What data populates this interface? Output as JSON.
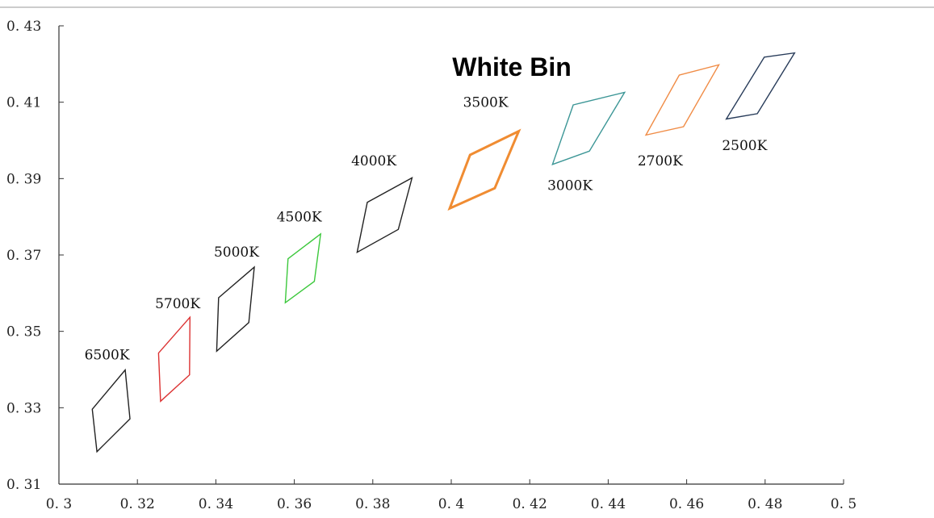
{
  "chart_data": {
    "type": "scatter",
    "title": "White Bin",
    "xlim": [
      0.3,
      0.5
    ],
    "ylim": [
      0.31,
      0.43
    ],
    "x_ticks": [
      "0. 3",
      "0. 32",
      "0. 34",
      "0. 36",
      "0. 38",
      "0. 4",
      "0. 42",
      "0. 44",
      "0. 46",
      "0. 48",
      "0. 5"
    ],
    "y_ticks": [
      "0. 43",
      "0. 41",
      "0. 39",
      "0. 37",
      "0. 35",
      "0. 33",
      "0. 31"
    ],
    "grid": false,
    "series": [
      {
        "name": "6500K",
        "color": "#222222",
        "bold": false,
        "points": [
          [
            0.3085,
            0.3296
          ],
          [
            0.3169,
            0.3399
          ],
          [
            0.3181,
            0.3271
          ],
          [
            0.3097,
            0.3185
          ]
        ]
      },
      {
        "name": "5700K",
        "color": "#dc3232",
        "bold": false,
        "points": [
          [
            0.3254,
            0.3443
          ],
          [
            0.3334,
            0.3537
          ],
          [
            0.3333,
            0.3386
          ],
          [
            0.3259,
            0.3317
          ]
        ]
      },
      {
        "name": "5000K",
        "color": "#222222",
        "bold": false,
        "points": [
          [
            0.3407,
            0.3588
          ],
          [
            0.3498,
            0.3668
          ],
          [
            0.3484,
            0.3523
          ],
          [
            0.3402,
            0.3448
          ]
        ]
      },
      {
        "name": "4500K",
        "color": "#3cc83c",
        "bold": false,
        "points": [
          [
            0.3584,
            0.369
          ],
          [
            0.3667,
            0.3755
          ],
          [
            0.3651,
            0.3631
          ],
          [
            0.3577,
            0.3575
          ]
        ]
      },
      {
        "name": "4000K",
        "color": "#222222",
        "bold": false,
        "points": [
          [
            0.3786,
            0.3838
          ],
          [
            0.39,
            0.3902
          ],
          [
            0.3865,
            0.3767
          ],
          [
            0.376,
            0.3707
          ]
        ]
      },
      {
        "name": "3500K",
        "color": "#f08c32",
        "bold": true,
        "points": [
          [
            0.4048,
            0.3962
          ],
          [
            0.4172,
            0.4024
          ],
          [
            0.4111,
            0.3875
          ],
          [
            0.3996,
            0.3822
          ]
        ]
      },
      {
        "name": "3000K",
        "color": "#3c9696",
        "bold": false,
        "points": [
          [
            0.4311,
            0.4093
          ],
          [
            0.4442,
            0.4126
          ],
          [
            0.4352,
            0.3972
          ],
          [
            0.4258,
            0.3937
          ]
        ]
      },
      {
        "name": "2700K",
        "color": "#f08c46",
        "bold": false,
        "points": [
          [
            0.4581,
            0.4171
          ],
          [
            0.4682,
            0.4198
          ],
          [
            0.4592,
            0.4036
          ],
          [
            0.4496,
            0.4014
          ]
        ]
      },
      {
        "name": "2500K",
        "color": "#283c5a",
        "bold": false,
        "points": [
          [
            0.4798,
            0.4218
          ],
          [
            0.4875,
            0.4229
          ],
          [
            0.478,
            0.407
          ],
          [
            0.4701,
            0.4056
          ]
        ]
      }
    ],
    "labels": [
      {
        "text": "6500K",
        "x": 0.3065,
        "y": 0.3426
      },
      {
        "text": "5700K",
        "x": 0.3245,
        "y": 0.3561
      },
      {
        "text": "5000K",
        "x": 0.3395,
        "y": 0.3696
      },
      {
        "text": "4500K",
        "x": 0.3555,
        "y": 0.3788
      },
      {
        "text": "4000K",
        "x": 0.3745,
        "y": 0.3935
      },
      {
        "text": "3500K",
        "x": 0.403,
        "y": 0.4088
      },
      {
        "text": "3000K",
        "x": 0.4245,
        "y": 0.387
      },
      {
        "text": "2700K",
        "x": 0.4475,
        "y": 0.3935
      },
      {
        "text": "2500K",
        "x": 0.469,
        "y": 0.3975
      }
    ]
  }
}
